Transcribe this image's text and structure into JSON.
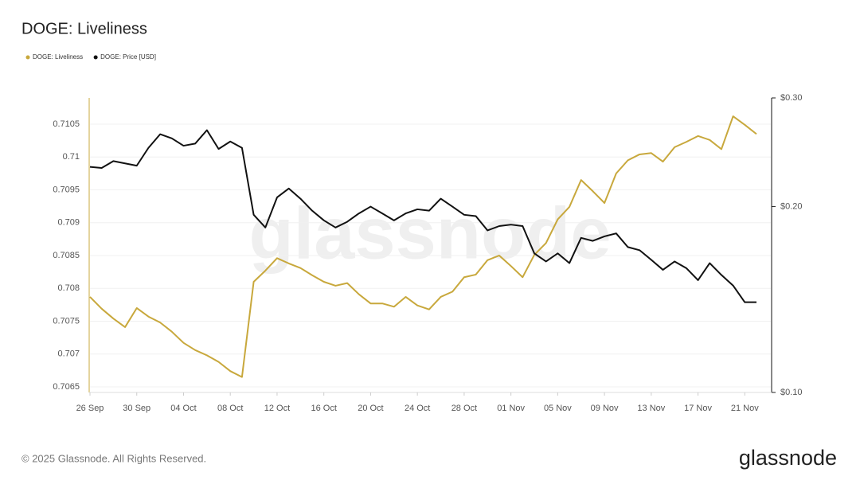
{
  "chart_data": {
    "type": "line",
    "title": "DOGE: Liveliness",
    "watermark": "glassnode",
    "footer": "© 2025 Glassnode. All Rights Reserved.",
    "brand": "glassnode",
    "legend": "top-left",
    "grid": true,
    "categories": [
      "26 Sep",
      null,
      null,
      null,
      "30 Sep",
      null,
      null,
      null,
      "04 Oct",
      null,
      null,
      null,
      "08 Oct",
      null,
      null,
      null,
      "12 Oct",
      null,
      null,
      null,
      "16 Oct",
      null,
      null,
      null,
      "20 Oct",
      null,
      null,
      null,
      "24 Oct",
      null,
      null,
      null,
      "28 Oct",
      null,
      null,
      null,
      "01 Nov",
      null,
      null,
      null,
      "05 Nov",
      null,
      null,
      null,
      "09 Nov",
      null,
      null,
      null,
      "13 Nov",
      null,
      null,
      null,
      "17 Nov",
      null,
      null,
      null,
      "21 Nov",
      null
    ],
    "ylim": [
      0.706415,
      0.7109
    ],
    "yticks": [
      0.7065,
      0.707,
      0.7075,
      0.708,
      0.7085,
      0.709,
      0.7095,
      0.71,
      0.7105
    ],
    "y2lim": [
      0.1,
      0.3
    ],
    "y2_log": true,
    "y2ticks": [
      {
        "value": 0.1,
        "label": "$0.10"
      },
      {
        "value": 0.2,
        "label": "$0.20"
      },
      {
        "value": 0.3,
        "label": "$0.30"
      }
    ],
    "series": [
      {
        "name": "DOGE: Liveliness",
        "color": "#c8a83c",
        "values": [
          0.70787,
          0.70769,
          0.70754,
          0.70741,
          0.7077,
          0.70757,
          0.70748,
          0.70734,
          0.70717,
          0.70706,
          0.70698,
          0.70688,
          0.70674,
          0.70665,
          0.7081,
          0.70827,
          0.70846,
          0.70838,
          0.70831,
          0.7082,
          0.7081,
          0.70804,
          0.70808,
          0.70791,
          0.70777,
          0.70777,
          0.70772,
          0.70787,
          0.70774,
          0.70768,
          0.70787,
          0.70795,
          0.70817,
          0.70821,
          0.70843,
          0.7085,
          0.70834,
          0.70817,
          0.70851,
          0.70869,
          0.70905,
          0.70924,
          0.70965,
          0.70948,
          0.7093,
          0.70975,
          0.70995,
          0.71004,
          0.71006,
          0.70993,
          0.71015,
          0.71023,
          0.71032,
          0.71026,
          0.71012,
          0.71062,
          0.71049,
          0.71035
        ]
      },
      {
        "name": "DOGE: Price [USD]",
        "color": "#111111",
        "axis": "y2",
        "values": [
          0.232,
          0.231,
          0.237,
          0.235,
          0.233,
          0.249,
          0.262,
          0.258,
          0.251,
          0.253,
          0.266,
          0.248,
          0.255,
          0.249,
          0.194,
          0.185,
          0.207,
          0.214,
          0.206,
          0.197,
          0.19,
          0.185,
          0.189,
          0.195,
          0.2,
          0.195,
          0.19,
          0.195,
          0.198,
          0.197,
          0.206,
          0.2,
          0.194,
          0.193,
          0.183,
          0.186,
          0.187,
          0.186,
          0.168,
          0.163,
          0.168,
          0.162,
          0.178,
          0.176,
          0.179,
          0.181,
          0.172,
          0.17,
          0.164,
          0.158,
          0.163,
          0.159,
          0.152,
          0.162,
          0.155,
          0.149,
          0.14,
          0.14
        ]
      }
    ]
  }
}
